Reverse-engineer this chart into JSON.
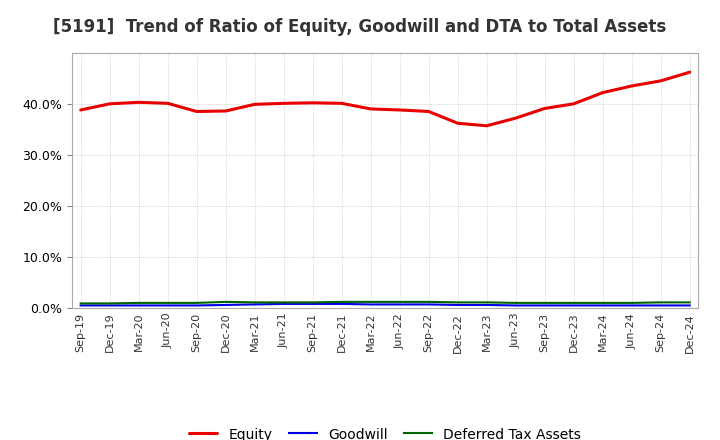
{
  "title": "[5191]  Trend of Ratio of Equity, Goodwill and DTA to Total Assets",
  "x_labels": [
    "Sep-19",
    "Dec-19",
    "Mar-20",
    "Jun-20",
    "Sep-20",
    "Dec-20",
    "Mar-21",
    "Jun-21",
    "Sep-21",
    "Dec-21",
    "Mar-22",
    "Jun-22",
    "Sep-22",
    "Dec-22",
    "Mar-23",
    "Jun-23",
    "Sep-23",
    "Dec-23",
    "Mar-24",
    "Jun-24",
    "Sep-24",
    "Dec-24"
  ],
  "equity": [
    0.388,
    0.4,
    0.403,
    0.401,
    0.385,
    0.386,
    0.399,
    0.401,
    0.402,
    0.401,
    0.39,
    0.388,
    0.385,
    0.362,
    0.357,
    0.372,
    0.391,
    0.4,
    0.422,
    0.435,
    0.445,
    0.462
  ],
  "goodwill": [
    0.005,
    0.005,
    0.005,
    0.005,
    0.005,
    0.006,
    0.007,
    0.008,
    0.008,
    0.008,
    0.007,
    0.007,
    0.007,
    0.006,
    0.006,
    0.005,
    0.005,
    0.005,
    0.005,
    0.005,
    0.005,
    0.005
  ],
  "dta": [
    0.009,
    0.009,
    0.01,
    0.01,
    0.01,
    0.012,
    0.011,
    0.011,
    0.011,
    0.012,
    0.012,
    0.012,
    0.012,
    0.011,
    0.011,
    0.01,
    0.01,
    0.01,
    0.01,
    0.01,
    0.011,
    0.011
  ],
  "equity_color": "#e80000",
  "goodwill_color": "#0000e8",
  "dta_color": "#006400",
  "background_color": "#ffffff",
  "grid_color": "#888888",
  "ylim": [
    0.0,
    0.5
  ],
  "yticks": [
    0.0,
    0.1,
    0.2,
    0.3,
    0.4
  ],
  "legend_labels": [
    "Equity",
    "Goodwill",
    "Deferred Tax Assets"
  ],
  "title_color": "#333333",
  "title_fontsize": 12
}
